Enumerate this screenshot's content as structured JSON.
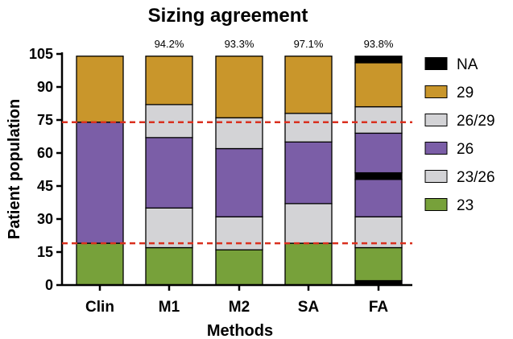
{
  "chart_data": {
    "type": "bar",
    "stacked": true,
    "title": "Sizing agreement",
    "xlabel": "Methods",
    "ylabel": "Patient population",
    "ylim": [
      0,
      105
    ],
    "yticks": [
      "0",
      "15",
      "30",
      "45",
      "60",
      "75",
      "90",
      "105"
    ],
    "grid": false,
    "legend_position": "right",
    "categories": [
      "Clin",
      "M1",
      "M2",
      "SA",
      "FA"
    ],
    "top_labels": [
      "",
      "94.2%",
      "93.3%",
      "97.1%",
      "93.8%"
    ],
    "reference_lines": [
      19,
      74
    ],
    "reference_line_color": "#d9301f",
    "legend": [
      {
        "name": "NA",
        "color": "#000000"
      },
      {
        "name": "29",
        "color": "#c9962b"
      },
      {
        "name": "26/29",
        "color": "#d3d3d6"
      },
      {
        "name": "26",
        "color": "#7b5ea7"
      },
      {
        "name": "23/26",
        "color": "#d3d3d6"
      },
      {
        "name": "23",
        "color": "#77a13a"
      }
    ],
    "bars": [
      {
        "category": "Clin",
        "segments": [
          {
            "series": "23",
            "from": 0,
            "to": 19
          },
          {
            "series": "26",
            "from": 19,
            "to": 74
          },
          {
            "series": "29",
            "from": 74,
            "to": 104
          }
        ]
      },
      {
        "category": "M1",
        "segments": [
          {
            "series": "23",
            "from": 0,
            "to": 17
          },
          {
            "series": "23/26",
            "from": 17,
            "to": 35
          },
          {
            "series": "26",
            "from": 35,
            "to": 67
          },
          {
            "series": "26/29",
            "from": 67,
            "to": 82
          },
          {
            "series": "29",
            "from": 82,
            "to": 104
          }
        ]
      },
      {
        "category": "M2",
        "segments": [
          {
            "series": "23",
            "from": 0,
            "to": 16
          },
          {
            "series": "23/26",
            "from": 16,
            "to": 31
          },
          {
            "series": "26",
            "from": 31,
            "to": 62
          },
          {
            "series": "26/29",
            "from": 62,
            "to": 76
          },
          {
            "series": "29",
            "from": 76,
            "to": 104
          }
        ]
      },
      {
        "category": "SA",
        "segments": [
          {
            "series": "23",
            "from": 0,
            "to": 19
          },
          {
            "series": "23/26",
            "from": 19,
            "to": 37
          },
          {
            "series": "26",
            "from": 37,
            "to": 65
          },
          {
            "series": "26/29",
            "from": 65,
            "to": 78
          },
          {
            "series": "29",
            "from": 78,
            "to": 104
          }
        ]
      },
      {
        "category": "FA",
        "segments": [
          {
            "series": "NA",
            "from": 0,
            "to": 2
          },
          {
            "series": "23",
            "from": 2,
            "to": 17
          },
          {
            "series": "23/26",
            "from": 17,
            "to": 31
          },
          {
            "series": "26",
            "from": 31,
            "to": 48
          },
          {
            "series": "NA",
            "from": 48,
            "to": 51
          },
          {
            "series": "26",
            "from": 51,
            "to": 69
          },
          {
            "series": "26/29",
            "from": 69,
            "to": 81
          },
          {
            "series": "29",
            "from": 81,
            "to": 101
          },
          {
            "series": "NA",
            "from": 101,
            "to": 104
          }
        ]
      }
    ]
  }
}
